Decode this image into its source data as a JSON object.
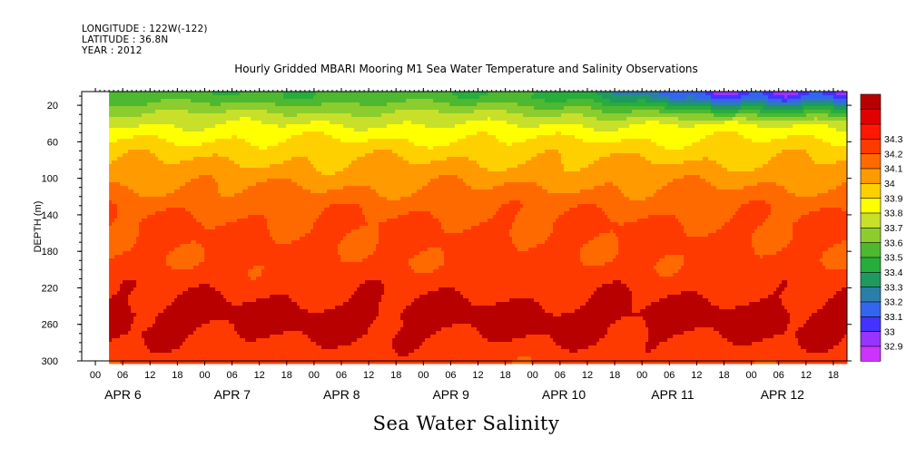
{
  "header": {
    "longitude": "LONGITUDE : 122W(-122)",
    "latitude": "LATITUDE : 36.8N",
    "year": "YEAR : 2012"
  },
  "chart_data": {
    "type": "heatmap",
    "title": "Hourly Gridded MBARI Mooring M1 Sea Water Temperature and Salinity Observations",
    "bottom_title": "Sea Water Salinity",
    "ylabel": "DEPTH (m)",
    "ylim": [
      300,
      5
    ],
    "y_ticks": [
      20,
      60,
      100,
      140,
      180,
      220,
      260,
      300
    ],
    "x_hour_ticks": [
      "00",
      "06",
      "12",
      "18",
      "00",
      "06",
      "12",
      "18",
      "00",
      "06",
      "12",
      "18",
      "00",
      "06",
      "12",
      "18",
      "00",
      "06",
      "12",
      "18",
      "00",
      "06",
      "12",
      "18",
      "00",
      "06",
      "12",
      "18"
    ],
    "x_day_labels": [
      "APR 6",
      "APR 7",
      "APR 8",
      "APR 9",
      "APR 10",
      "APR 11",
      "APR 12"
    ],
    "data_start_hour": 6,
    "colorbar": {
      "levels": [
        32.9,
        33,
        33.1,
        33.2,
        33.3,
        33.4,
        33.5,
        33.6,
        33.7,
        33.8,
        33.9,
        34,
        34.1,
        34.2,
        34.3
      ],
      "colors": [
        "#cc33ff",
        "#9933ff",
        "#4433ff",
        "#3366ee",
        "#2a7fa8",
        "#1f9960",
        "#27ad3c",
        "#4db830",
        "#8ccd2e",
        "#c8e02a",
        "#ffff00",
        "#ffd000",
        "#ff9a00",
        "#ff6a00",
        "#ff3a00",
        "#ff1800",
        "#e00000",
        "#b80000"
      ]
    },
    "profile": [
      {
        "depth": 10,
        "salinity": 33.52
      },
      {
        "depth": 30,
        "salinity": 33.72
      },
      {
        "depth": 50,
        "salinity": 33.86
      },
      {
        "depth": 70,
        "salinity": 33.96
      },
      {
        "depth": 90,
        "salinity": 34.03
      },
      {
        "depth": 110,
        "salinity": 34.1
      },
      {
        "depth": 130,
        "salinity": 34.17
      },
      {
        "depth": 150,
        "salinity": 34.21
      },
      {
        "depth": 170,
        "salinity": 34.22
      },
      {
        "depth": 190,
        "salinity": 34.22
      },
      {
        "depth": 210,
        "salinity": 34.25
      },
      {
        "depth": 230,
        "salinity": 34.29
      },
      {
        "depth": 250,
        "salinity": 34.34
      },
      {
        "depth": 270,
        "salinity": 34.31
      },
      {
        "depth": 290,
        "salinity": 34.26
      },
      {
        "depth": 300,
        "salinity": 34.24
      }
    ],
    "surface_freshening": {
      "start_day": 4.1,
      "end_day": 7.0,
      "min_salinity": 33.05
    }
  }
}
